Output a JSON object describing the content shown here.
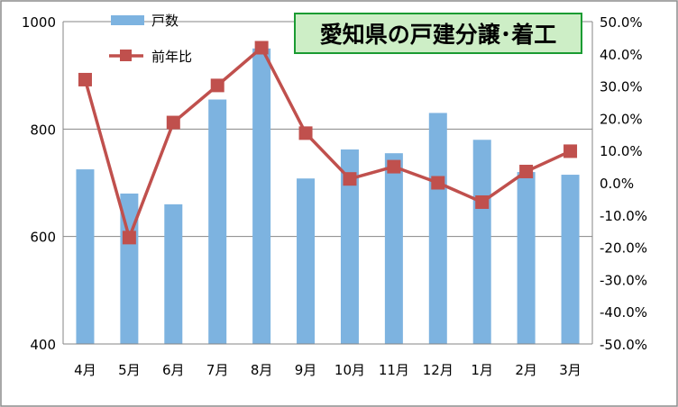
{
  "chart_data": {
    "type": "bar",
    "title": "愛知県の戸建分譲･着工",
    "categories": [
      "4月",
      "5月",
      "6月",
      "7月",
      "8月",
      "9月",
      "10月",
      "11月",
      "12月",
      "1月",
      "2月",
      "3月"
    ],
    "series": [
      {
        "name": "戸数",
        "type": "bar",
        "axis": "left",
        "color": "#7db3e0",
        "values": [
          725,
          680,
          660,
          855,
          950,
          708,
          762,
          755,
          830,
          780,
          720,
          715
        ]
      },
      {
        "name": "前年比",
        "type": "line",
        "axis": "right",
        "color": "#c0504d",
        "values": [
          32.0,
          -17.0,
          18.7,
          30.2,
          41.9,
          15.4,
          1.2,
          5.0,
          0.0,
          -6.0,
          3.5,
          9.8
        ]
      }
    ],
    "y_left": {
      "min": 400,
      "max": 1000,
      "ticks": [
        "400",
        "600",
        "800",
        "1000"
      ],
      "tick_values": [
        400,
        600,
        800,
        1000
      ]
    },
    "y_right": {
      "min": -50,
      "max": 50,
      "ticks": [
        "-50.0%",
        "-40.0%",
        "-30.0%",
        "-20.0%",
        "-10.0%",
        "0.0%",
        "10.0%",
        "20.0%",
        "30.0%",
        "40.0%",
        "50.0%"
      ],
      "tick_values": [
        -50,
        -40,
        -30,
        -20,
        -10,
        0,
        10,
        20,
        30,
        40,
        50
      ]
    },
    "legend_position": "top-left",
    "grid": true,
    "title_bg": "#cdeec6",
    "title_border": "#1a9b32"
  }
}
